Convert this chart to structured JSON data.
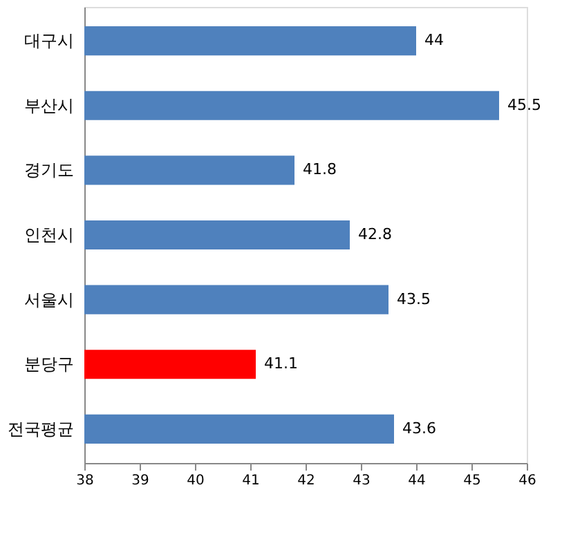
{
  "chart_data": {
    "type": "bar",
    "orientation": "horizontal",
    "categories": [
      "대구시",
      "부산시",
      "경기도",
      "인천시",
      "서울시",
      "분당구",
      "전국평균"
    ],
    "values": [
      44,
      45.5,
      41.8,
      42.8,
      43.5,
      41.1,
      43.6
    ],
    "colors": [
      "#4f81bd",
      "#4f81bd",
      "#4f81bd",
      "#4f81bd",
      "#4f81bd",
      "#ff0000",
      "#4f81bd"
    ],
    "xlim": [
      38,
      46
    ],
    "xticks": [
      38,
      39,
      40,
      41,
      42,
      43,
      44,
      45,
      46
    ],
    "data_labels": true,
    "grid": false
  }
}
